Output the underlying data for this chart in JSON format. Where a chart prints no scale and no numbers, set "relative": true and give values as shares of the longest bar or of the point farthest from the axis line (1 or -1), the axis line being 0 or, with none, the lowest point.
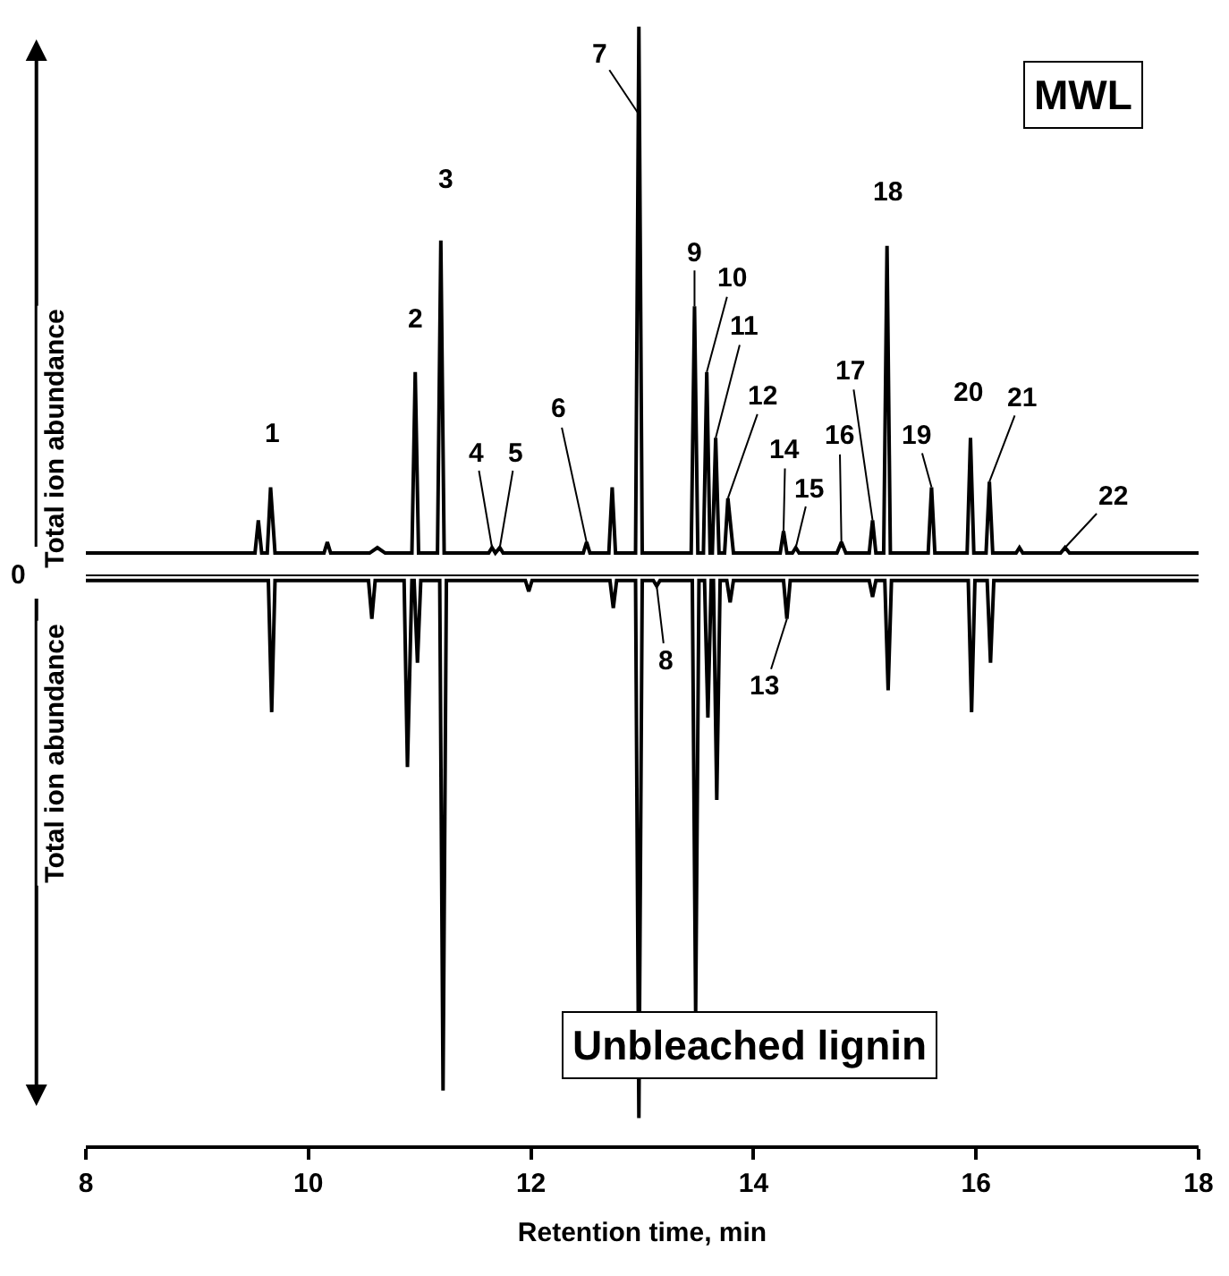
{
  "chart_data": {
    "type": "line",
    "relative": true,
    "xlabel": "Retention time, min",
    "ylabel": "Total ion abundance",
    "xlim": [
      8,
      18
    ],
    "xticks": [
      8,
      10,
      12,
      14,
      16,
      18
    ],
    "legend": false,
    "marker": "none",
    "line_style": "solid",
    "series": [
      {
        "name": "MWL",
        "color": "#000000",
        "x": [
          8,
          9.52,
          9.55,
          9.58,
          9.63,
          9.66,
          9.7,
          10.14,
          10.17,
          10.2,
          10.55,
          10.62,
          10.69,
          10.93,
          10.96,
          10.99,
          11.16,
          11.19,
          11.22,
          11.62,
          11.65,
          11.68,
          11.72,
          11.75,
          12.47,
          12.5,
          12.53,
          12.7,
          12.73,
          12.76,
          12.94,
          12.97,
          13.0,
          13.44,
          13.47,
          13.5,
          13.55,
          13.58,
          13.61,
          13.63,
          13.66,
          13.69,
          13.74,
          13.77,
          13.82,
          14.24,
          14.27,
          14.3,
          14.35,
          14.38,
          14.41,
          14.75,
          14.79,
          14.83,
          15.04,
          15.07,
          15.1,
          15.17,
          15.2,
          15.23,
          15.57,
          15.6,
          15.63,
          15.92,
          15.95,
          15.98,
          16.09,
          16.12,
          16.15,
          16.36,
          16.39,
          16.42,
          16.76,
          16.8,
          16.84,
          18
        ],
        "values": [
          0.04,
          0.04,
          0.1,
          0.04,
          0.04,
          0.16,
          0.04,
          0.04,
          0.06,
          0.04,
          0.04,
          0.05,
          0.04,
          0.04,
          0.37,
          0.04,
          0.04,
          0.61,
          0.04,
          0.04,
          0.05,
          0.04,
          0.05,
          0.04,
          0.04,
          0.06,
          0.04,
          0.04,
          0.16,
          0.04,
          0.04,
          1.0,
          0.04,
          0.04,
          0.49,
          0.04,
          0.04,
          0.37,
          0.04,
          0.04,
          0.25,
          0.04,
          0.04,
          0.14,
          0.04,
          0.04,
          0.08,
          0.04,
          0.04,
          0.05,
          0.04,
          0.04,
          0.06,
          0.04,
          0.04,
          0.1,
          0.04,
          0.04,
          0.6,
          0.04,
          0.04,
          0.16,
          0.04,
          0.04,
          0.25,
          0.04,
          0.04,
          0.17,
          0.04,
          0.04,
          0.05,
          0.04,
          0.04,
          0.05,
          0.04,
          0.04
        ]
      },
      {
        "name": "Unbleached lignin",
        "color": "#000000",
        "x": [
          8,
          9.64,
          9.67,
          9.7,
          10.54,
          10.57,
          10.6,
          10.86,
          10.89,
          10.93,
          10.95,
          10.98,
          11.01,
          11.18,
          11.21,
          11.24,
          11.95,
          11.98,
          12.01,
          12.71,
          12.74,
          12.77,
          12.94,
          12.97,
          13.0,
          13.1,
          13.13,
          13.16,
          13.45,
          13.48,
          13.51,
          13.56,
          13.59,
          13.62,
          13.64,
          13.67,
          13.7,
          13.76,
          13.79,
          13.82,
          14.27,
          14.3,
          14.33,
          15.04,
          15.07,
          15.1,
          15.18,
          15.21,
          15.24,
          15.93,
          15.96,
          15.99,
          16.1,
          16.13,
          16.16,
          18
        ],
        "values": [
          -0.01,
          -0.01,
          -0.25,
          -0.01,
          -0.01,
          -0.08,
          -0.01,
          -0.01,
          -0.35,
          -0.01,
          -0.01,
          -0.16,
          -0.01,
          -0.01,
          -0.94,
          -0.01,
          -0.01,
          -0.03,
          -0.01,
          -0.01,
          -0.06,
          -0.01,
          -0.01,
          -0.99,
          -0.01,
          -0.01,
          -0.02,
          -0.01,
          -0.01,
          -0.8,
          -0.01,
          -0.01,
          -0.26,
          -0.01,
          -0.01,
          -0.41,
          -0.01,
          -0.01,
          -0.05,
          -0.01,
          -0.01,
          -0.08,
          -0.01,
          -0.01,
          -0.04,
          -0.01,
          -0.01,
          -0.21,
          -0.01,
          -0.01,
          -0.25,
          -0.01,
          -0.01,
          -0.16,
          -0.01,
          -0.01
        ]
      }
    ],
    "annotations": [
      "0",
      {
        "text": "1",
        "x": 9.66,
        "y": 0.16
      },
      {
        "text": "2",
        "x": 10.96,
        "y": 0.37
      },
      {
        "text": "3",
        "x": 11.19,
        "y": 0.61
      },
      {
        "text": "4",
        "x": 11.65,
        "y": 0.05
      },
      {
        "text": "5",
        "x": 11.72,
        "y": 0.05
      },
      {
        "text": "6",
        "x": 12.5,
        "y": 0.06
      },
      {
        "text": "7",
        "x": 12.97,
        "y": 0.84
      },
      {
        "text": "8",
        "x": 13.13,
        "y": -0.02
      },
      {
        "text": "9",
        "x": 13.47,
        "y": 0.49
      },
      {
        "text": "10",
        "x": 13.58,
        "y": 0.37
      },
      {
        "text": "11",
        "x": 13.66,
        "y": 0.25
      },
      {
        "text": "12",
        "x": 13.77,
        "y": 0.14
      },
      {
        "text": "13",
        "x": 14.3,
        "y": -0.08
      },
      {
        "text": "14",
        "x": 14.27,
        "y": 0.08
      },
      {
        "text": "15",
        "x": 14.38,
        "y": 0.05
      },
      {
        "text": "16",
        "x": 14.79,
        "y": 0.06
      },
      {
        "text": "17",
        "x": 15.07,
        "y": 0.1
      },
      {
        "text": "18",
        "x": 15.2,
        "y": 0.6
      },
      {
        "text": "19",
        "x": 15.6,
        "y": 0.16
      },
      {
        "text": "20",
        "x": 15.95,
        "y": 0.25
      },
      {
        "text": "21",
        "x": 16.12,
        "y": 0.17
      },
      {
        "text": "22",
        "x": 16.8,
        "y": 0.05
      }
    ]
  }
}
